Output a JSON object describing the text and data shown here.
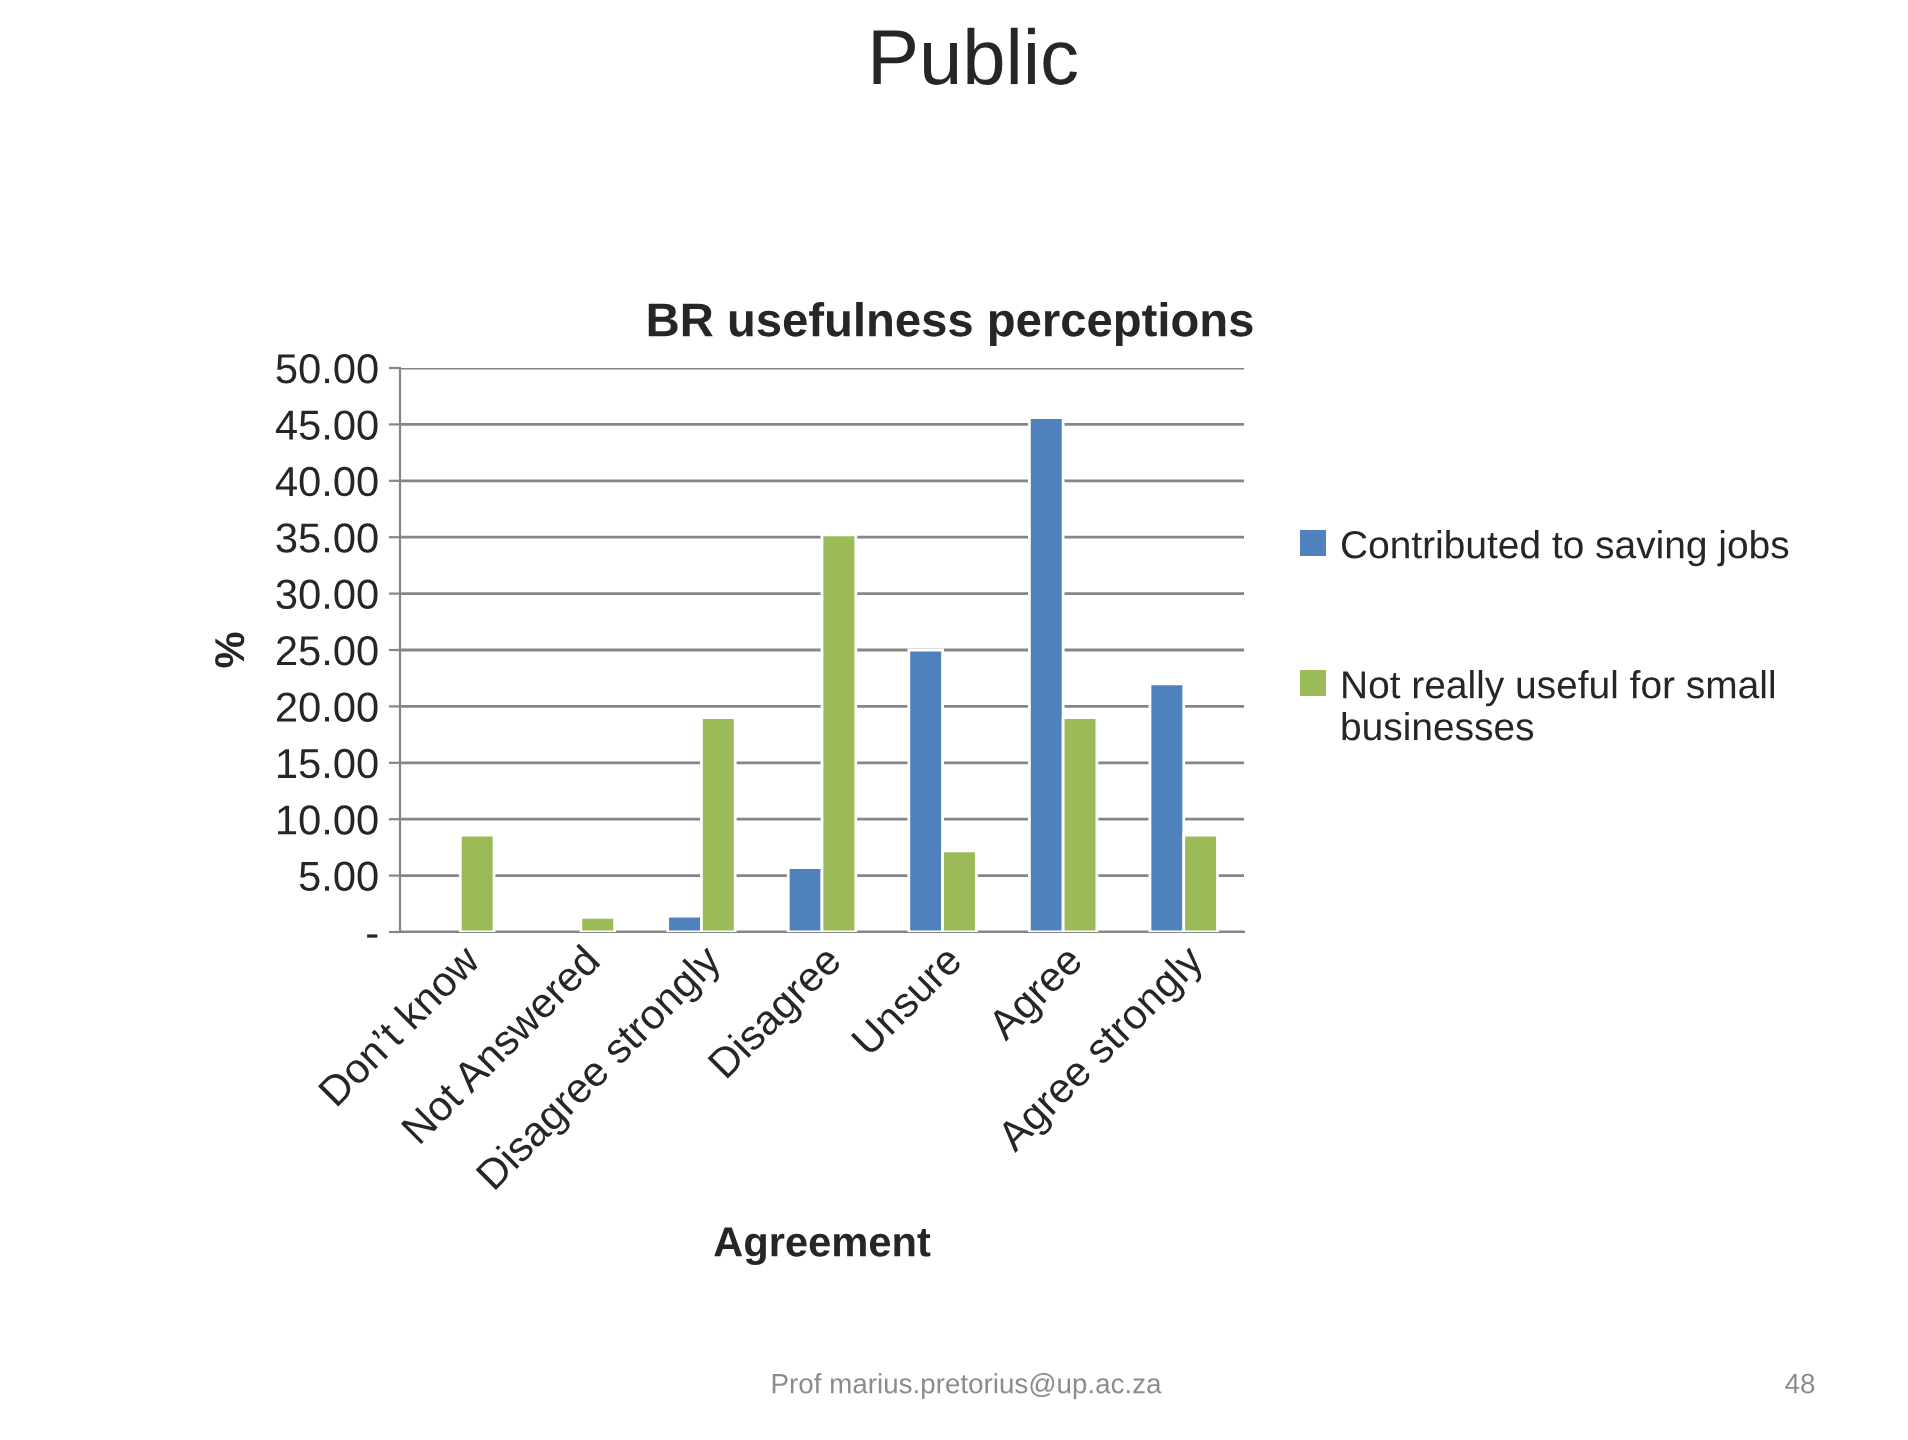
{
  "chart_data": {
    "type": "bar",
    "title": "Public",
    "subtitle": "BR usefulness perceptions",
    "xlabel": "Agreement",
    "ylabel": "%",
    "categories": [
      "Don’t know",
      "Not Answered",
      "Disagree strongly",
      "Disagree",
      "Unsure",
      "Agree",
      "Agree strongly"
    ],
    "series": [
      {
        "name": "Contributed to saving jobs",
        "color": "#4f81bd",
        "values": [
          null,
          null,
          1.4,
          5.7,
          25.0,
          45.6,
          22.0
        ]
      },
      {
        "name": "Not really useful for small businesses",
        "color": "#9bbb59",
        "values": [
          8.6,
          1.3,
          19.0,
          35.2,
          7.2,
          19.0,
          8.6
        ]
      }
    ],
    "ylim": [
      0,
      50
    ],
    "yticks": [
      {
        "value": 0,
        "label": "-"
      },
      {
        "value": 5,
        "label": "5.00"
      },
      {
        "value": 10,
        "label": "10.00"
      },
      {
        "value": 15,
        "label": "15.00"
      },
      {
        "value": 20,
        "label": "20.00"
      },
      {
        "value": 25,
        "label": "25.00"
      },
      {
        "value": 30,
        "label": "30.00"
      },
      {
        "value": 35,
        "label": "35.00"
      },
      {
        "value": 40,
        "label": "40.00"
      },
      {
        "value": 45,
        "label": "45.00"
      },
      {
        "value": 50,
        "label": "50.00"
      }
    ],
    "grid": "y",
    "legend": "right",
    "annotations": [
      "Prof marius.pretorius@up.ac.za",
      "48"
    ]
  }
}
